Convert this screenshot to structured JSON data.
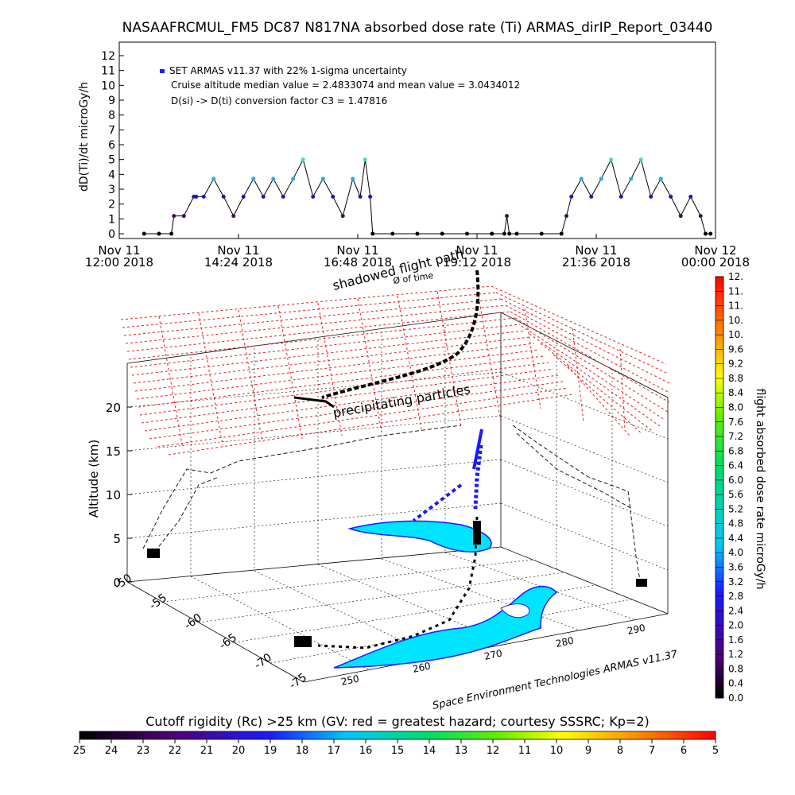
{
  "chart_data": [
    {
      "type": "line",
      "title": "NASAAFRCMUL_FM5 DC87 N817NA absorbed dose rate (Ti) ARMAS_dirIP_Report_03440",
      "ylabel": "dD(Ti)/dt microGy/h",
      "ylim": [
        0,
        12
      ],
      "yticks": [
        "0",
        "1",
        "2",
        "3",
        "4",
        "5",
        "6",
        "7",
        "8",
        "9",
        "10",
        "11",
        "12"
      ],
      "xticks": [
        {
          "line1": "Nov 11",
          "line2": "12:00 2018"
        },
        {
          "line1": "Nov 11",
          "line2": "14:24 2018"
        },
        {
          "line1": "Nov 11",
          "line2": "16:48 2018"
        },
        {
          "line1": "Nov 11",
          "line2": "19:12 2018"
        },
        {
          "line1": "Nov 11",
          "line2": "21:36 2018"
        },
        {
          "line1": "Nov 12",
          "line2": "00:00 2018"
        }
      ],
      "x_range_hours": [
        0,
        12
      ],
      "legend": [
        "SET ARMAS v11.37 with 22% 1-sigma uncertainty",
        "Cruise altitude median value = 2.4833074 and mean value = 3.0434012",
        "D(si) -> D(ti) conversion factor C3 = 1.47816"
      ],
      "series": [
        {
          "x": [
            0.5,
            0.8,
            1.05,
            1.1,
            1.3,
            1.5,
            1.55,
            1.7,
            1.9,
            2.1,
            2.3,
            2.5,
            2.7,
            2.9,
            3.1,
            3.3,
            3.5,
            3.7,
            3.9,
            4.1,
            4.3,
            4.5,
            4.7,
            4.85,
            4.95,
            5.05,
            5.1,
            5.5,
            6.0,
            6.5,
            7.0,
            7.5,
            7.75,
            7.8,
            7.85,
            8.0,
            8.5,
            8.9,
            9.0,
            9.1,
            9.3,
            9.5,
            9.7,
            9.9,
            10.1,
            10.3,
            10.5,
            10.7,
            10.9,
            11.1,
            11.3,
            11.5,
            11.7,
            11.8,
            11.9
          ],
          "y": [
            0,
            0,
            0,
            1.2,
            1.2,
            2.5,
            2.5,
            2.5,
            3.7,
            2.5,
            1.2,
            2.5,
            3.7,
            2.5,
            3.7,
            2.5,
            3.7,
            5.0,
            2.5,
            3.7,
            2.5,
            1.2,
            3.7,
            2.5,
            5.0,
            2.5,
            0,
            0,
            0,
            0,
            0,
            0,
            0,
            1.2,
            0,
            0,
            0,
            0,
            1.2,
            2.5,
            3.7,
            2.5,
            3.7,
            5.0,
            2.5,
            3.7,
            5.0,
            2.5,
            3.7,
            2.5,
            1.2,
            2.5,
            1.2,
            0,
            0
          ]
        }
      ]
    },
    {
      "type": "scatter",
      "title": "",
      "zlabel": "Altitude (km)",
      "zticks": [
        "0",
        "5",
        "10",
        "15",
        "20"
      ],
      "lat_ticks": [
        "-50",
        "-55",
        "-60",
        "-65",
        "-70",
        "-75"
      ],
      "lon_ticks": [
        "250",
        "260",
        "270",
        "280",
        "290"
      ],
      "annotations": [
        "shadowed flight path",
        "Ø of time",
        "precipitating particles",
        "Space Environment Technologies ARMAS v11.37"
      ],
      "colorbar_label": "flight absorbed dose rate microGy/h",
      "colorbar_ticks": [
        "0.0",
        "0.4",
        "0.8",
        "1.2",
        "1.6",
        "2.0",
        "2.4",
        "2.8",
        "3.2",
        "3.6",
        "4.0",
        "4.4",
        "4.8",
        "5.2",
        "5.6",
        "6.0",
        "6.4",
        "6.8",
        "7.2",
        "7.6",
        "8.0",
        "8.4",
        "8.8",
        "9.2",
        "9.6",
        "10.",
        "10.",
        "11.",
        "11.",
        "12."
      ]
    },
    {
      "type": "heatmap",
      "title": "Cutoff rigidity (Rc) >25 km (GV: red = greatest hazard; courtesy SSSRC; Kp=2)",
      "colorbar_ticks": [
        "25",
        "24",
        "23",
        "22",
        "21",
        "20",
        "19",
        "18",
        "17",
        "16",
        "15",
        "14",
        "13",
        "12",
        "11",
        "10",
        "9",
        "8",
        "7",
        "6",
        "5"
      ]
    }
  ]
}
